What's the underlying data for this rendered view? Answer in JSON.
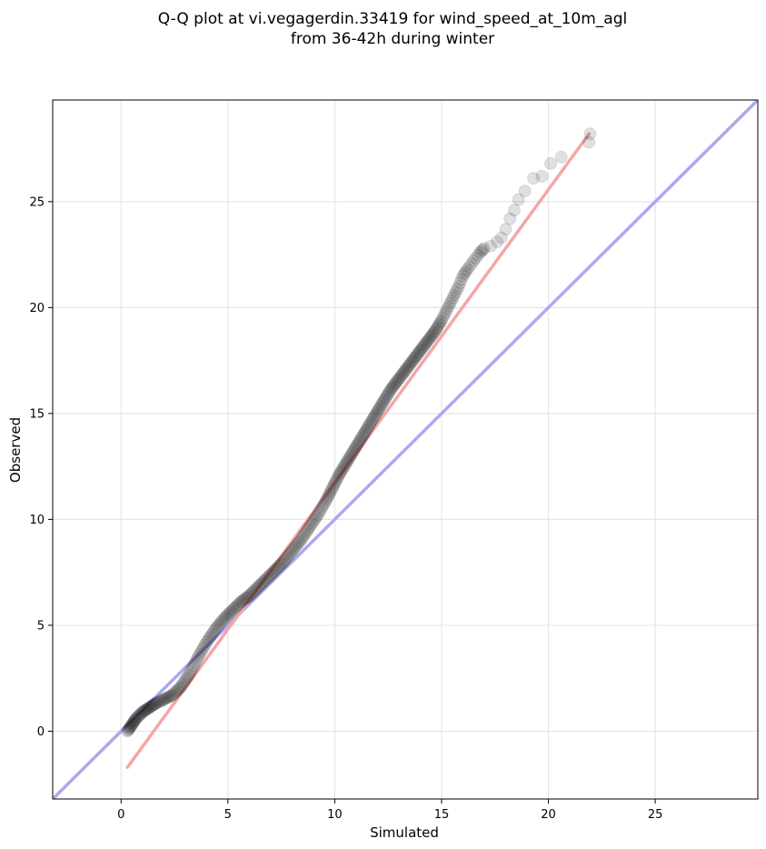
{
  "chart_data": {
    "type": "scatter",
    "title_line1": "Q-Q plot at vi.vegagerdin.33419 for wind_speed_at_10m_agl",
    "title_line2": "from 36-42h during winter",
    "xlabel": "Simulated",
    "ylabel": "Observed",
    "xlim": [
      -3.2,
      29.8
    ],
    "ylim": [
      -3.2,
      29.8
    ],
    "x_ticks": [
      0,
      5,
      10,
      15,
      20,
      25
    ],
    "y_ticks": [
      0,
      5,
      10,
      15,
      20,
      25
    ],
    "grid": true,
    "reference_lines": [
      {
        "name": "identity",
        "color": "#aaaaee",
        "points": [
          [
            -3.2,
            -3.2
          ],
          [
            29.8,
            29.8
          ]
        ]
      },
      {
        "name": "fit",
        "color": "#f4a6a6",
        "points": [
          [
            0.3,
            -1.7
          ],
          [
            21.9,
            28.2
          ]
        ]
      }
    ],
    "quantiles": {
      "x": [
        0.3,
        0.5,
        0.7,
        1.0,
        1.3,
        1.6,
        2.0,
        2.4,
        2.8,
        3.2,
        3.6,
        4.0,
        4.4,
        4.8,
        5.2,
        5.6,
        6.0,
        6.4,
        6.8,
        7.2,
        7.6,
        8.0,
        8.4,
        8.8,
        9.2,
        9.6,
        9.9,
        10.2,
        10.5,
        10.8,
        11.1,
        11.4,
        11.7,
        12.0,
        12.3,
        12.6,
        12.9,
        13.2,
        13.5,
        13.8,
        14.1,
        14.4,
        14.7,
        15.0,
        15.2,
        15.4,
        15.6,
        15.8,
        16.0,
        16.2,
        16.5,
        16.8,
        17.0,
        17.3,
        17.6,
        17.8,
        18.0,
        18.2,
        18.4,
        18.6,
        18.9,
        19.3,
        19.7,
        20.1,
        20.6,
        21.9,
        21.95
      ],
      "y": [
        0.0,
        0.3,
        0.6,
        0.9,
        1.1,
        1.3,
        1.5,
        1.7,
        2.1,
        2.7,
        3.5,
        4.2,
        4.8,
        5.3,
        5.7,
        6.1,
        6.4,
        6.8,
        7.2,
        7.6,
        8.0,
        8.5,
        9.0,
        9.6,
        10.2,
        10.9,
        11.5,
        12.1,
        12.6,
        13.1,
        13.6,
        14.1,
        14.6,
        15.1,
        15.6,
        16.1,
        16.5,
        16.9,
        17.3,
        17.7,
        18.1,
        18.5,
        18.9,
        19.4,
        19.8,
        20.2,
        20.6,
        21.0,
        21.5,
        21.8,
        22.2,
        22.6,
        22.8,
        22.9,
        23.1,
        23.3,
        23.7,
        24.2,
        24.6,
        25.1,
        25.5,
        26.1,
        26.2,
        26.8,
        27.1,
        27.8,
        28.2
      ]
    }
  }
}
